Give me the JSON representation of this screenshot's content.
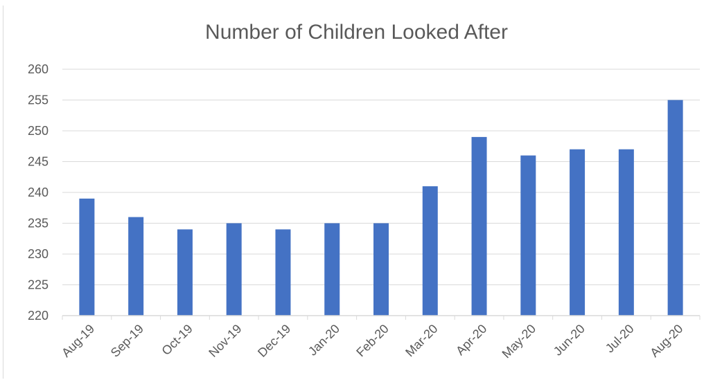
{
  "chart_data": {
    "type": "bar",
    "title": "Number of Children Looked After",
    "xlabel": "",
    "ylabel": "",
    "categories": [
      "Aug-19",
      "Sep-19",
      "Oct-19",
      "Nov-19",
      "Dec-19",
      "Jan-20",
      "Feb-20",
      "Mar-20",
      "Apr-20",
      "May-20",
      "Jun-20",
      "Jul-20",
      "Aug-20"
    ],
    "values": [
      239,
      236,
      234,
      235,
      234,
      235,
      235,
      241,
      249,
      246,
      247,
      247,
      255
    ],
    "ylim": [
      220,
      260
    ],
    "yticks": [
      220,
      225,
      230,
      235,
      240,
      245,
      250,
      255,
      260
    ],
    "grid": true,
    "legend": "none",
    "bar_color": "#4472c4",
    "grid_color": "#d9d9d9"
  }
}
